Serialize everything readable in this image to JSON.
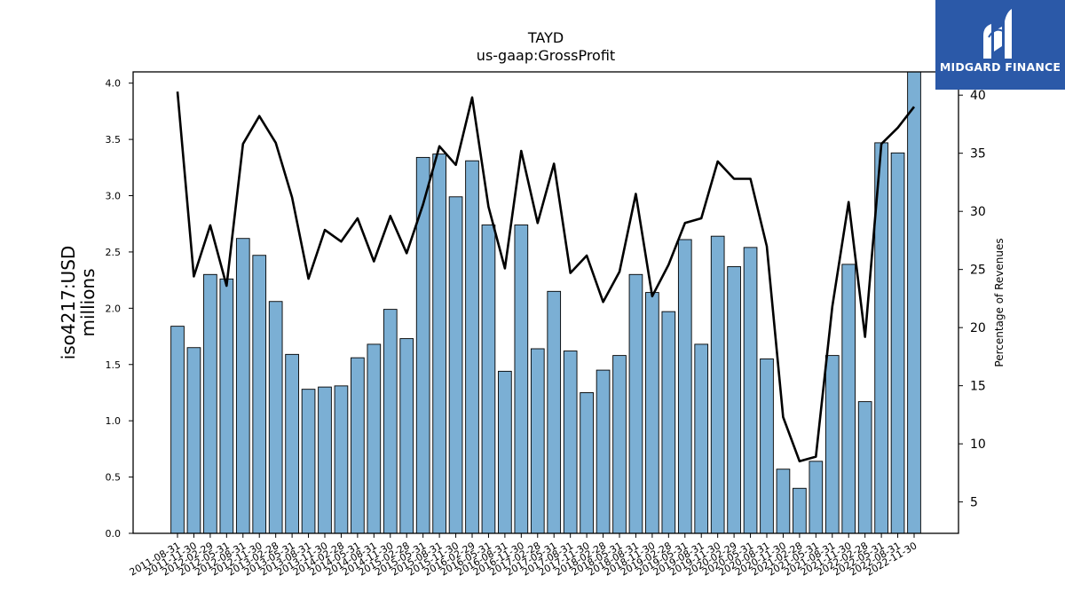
{
  "chart_data": {
    "type": "bar+line",
    "title": "TAYD",
    "subtitle": "us-gaap:GrossProfit",
    "ylabel_left": "iso4217:USD\nmillions",
    "ylabel_right": "Percentage of Revenues",
    "xlabel": "",
    "ylim_left": [
      0,
      4.1
    ],
    "ylim_right": [
      2.3,
      42.0
    ],
    "yticks_left": [
      "0.0",
      "0.5",
      "1.0",
      "1.5",
      "2.0",
      "2.5",
      "3.0",
      "3.5",
      "4.0"
    ],
    "yticks_right": [
      "5",
      "10",
      "15",
      "20",
      "25",
      "30",
      "35",
      "40"
    ],
    "grid": false,
    "categories": [
      "2011-08-31",
      "2011-11-30",
      "2012-02-29",
      "2012-05-31",
      "2012-08-31",
      "2012-11-30",
      "2013-02-28",
      "2013-05-31",
      "2013-08-31",
      "2013-11-30",
      "2014-02-28",
      "2014-05-31",
      "2014-08-31",
      "2014-11-30",
      "2015-02-28",
      "2015-05-31",
      "2015-08-31",
      "2015-11-30",
      "2016-02-29",
      "2016-05-31",
      "2016-08-31",
      "2016-11-30",
      "2017-02-28",
      "2017-05-31",
      "2017-08-31",
      "2017-11-30",
      "2018-02-28",
      "2018-05-31",
      "2018-08-31",
      "2018-11-30",
      "2019-02-28",
      "2019-05-31",
      "2019-08-31",
      "2019-11-30",
      "2020-02-29",
      "2020-05-31",
      "2020-08-31",
      "2020-11-30",
      "2021-02-28",
      "2021-05-31",
      "2021-08-31",
      "2021-11-30",
      "2022-02-28",
      "2022-05-31",
      "2022-08-31",
      "2022-11-30"
    ],
    "series": [
      {
        "name": "",
        "type": "bar",
        "axis": "left",
        "color": "#7bafd4",
        "values": [
          1.84,
          1.65,
          2.3,
          2.26,
          2.62,
          2.47,
          2.06,
          1.59,
          1.28,
          1.3,
          1.31,
          1.56,
          1.68,
          1.99,
          1.73,
          3.34,
          3.37,
          2.99,
          3.31,
          2.74,
          1.44,
          2.74,
          1.64,
          2.15,
          1.62,
          1.25,
          1.45,
          1.58,
          2.3,
          2.14,
          1.97,
          2.61,
          1.68,
          2.64,
          2.37,
          2.54,
          1.55,
          0.57,
          0.4,
          0.64,
          1.58,
          2.39,
          1.17,
          3.47,
          3.38,
          4.1
        ]
      },
      {
        "name": "",
        "type": "line",
        "axis": "right",
        "color": "#000000",
        "values": [
          40.3,
          24.4,
          28.8,
          23.6,
          35.8,
          38.2,
          35.9,
          31.2,
          24.2,
          28.4,
          27.4,
          29.4,
          25.7,
          29.6,
          26.4,
          30.6,
          35.6,
          34.0,
          39.8,
          30.4,
          25.1,
          35.2,
          29.0,
          34.1,
          24.7,
          26.2,
          22.2,
          24.8,
          31.5,
          22.7,
          25.4,
          29.0,
          29.4,
          34.3,
          32.8,
          32.8,
          27.0,
          12.3,
          8.5,
          8.9,
          21.8,
          30.8,
          19.2,
          35.8,
          37.2,
          39.0
        ]
      }
    ]
  },
  "logo": {
    "text": "MIDGARD FINANCE"
  }
}
